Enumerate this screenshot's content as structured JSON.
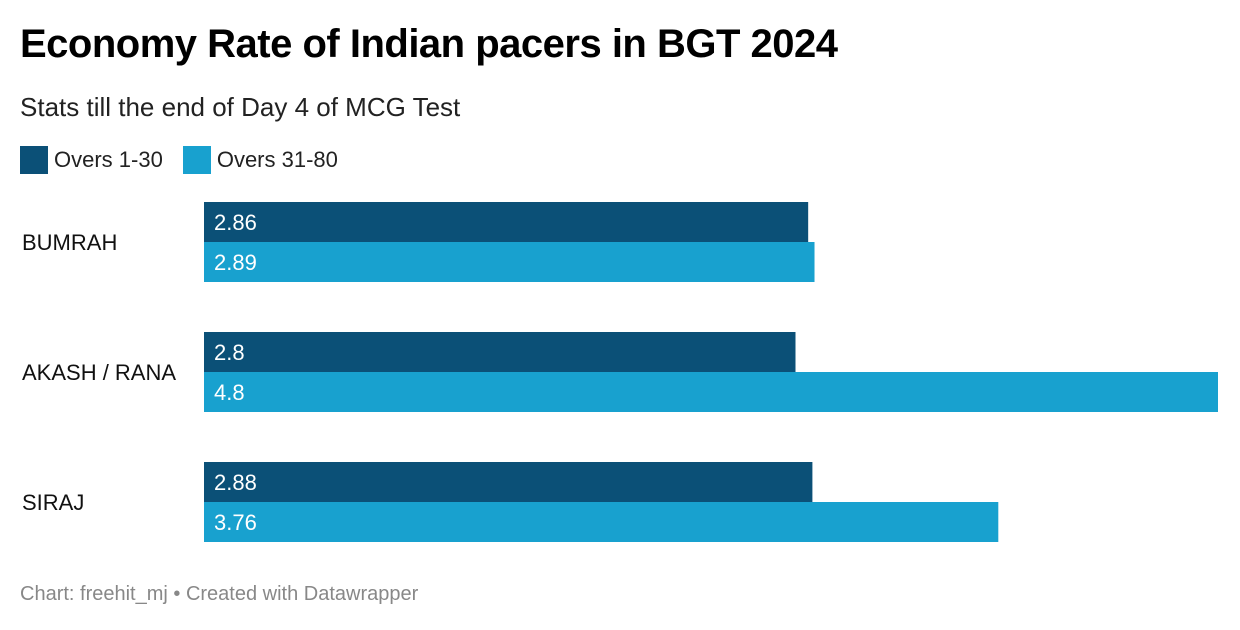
{
  "header": {
    "title": "Economy Rate of Indian pacers in BGT 2024",
    "subtitle": "Stats till the end of Day 4 of MCG Test"
  },
  "footer": {
    "text": "Chart: freehit_mj • Created with Datawrapper"
  },
  "colors": {
    "series1": "#0b5077",
    "series2": "#18a1cf",
    "label_text": "#ffffff"
  },
  "chart_data": {
    "type": "bar",
    "orientation": "horizontal",
    "title": "Economy Rate of Indian pacers in BGT 2024",
    "subtitle": "Stats till the end of Day 4 of MCG Test",
    "categories": [
      "BUMRAH",
      "AKASH / RANA",
      "SIRAJ"
    ],
    "series": [
      {
        "name": "Overs 1-30",
        "values": [
          2.86,
          2.8,
          2.88
        ],
        "color": "#0b5077"
      },
      {
        "name": "Overs 31-80",
        "values": [
          2.89,
          4.8,
          3.76
        ],
        "color": "#18a1cf"
      }
    ],
    "xlim": [
      0,
      4.8
    ],
    "grid": false,
    "legend": "top-left",
    "data_labels": true
  }
}
